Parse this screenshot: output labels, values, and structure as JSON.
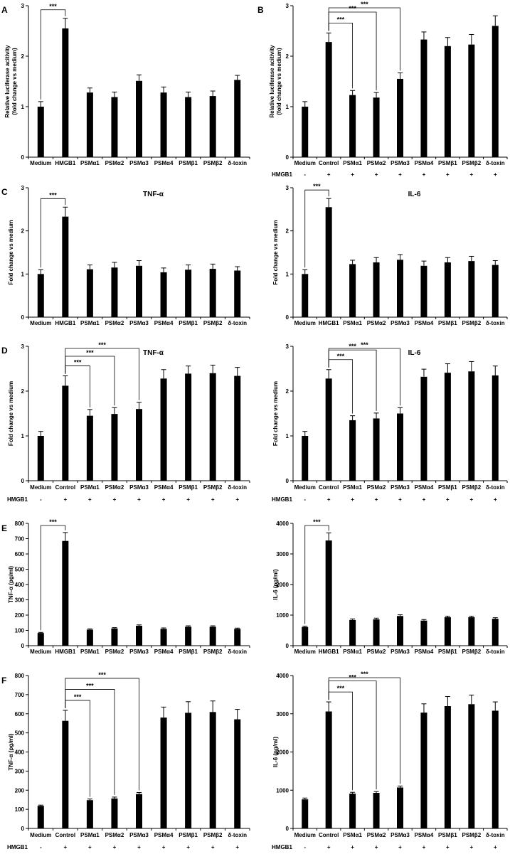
{
  "chart_data": [
    {
      "panel": "A",
      "type": "bar",
      "title": "",
      "ylabel": "Relative luciferase acitivity\n(fold change vs medium)",
      "ylim": [
        0,
        3
      ],
      "yticks": [
        "0",
        "1",
        "2",
        "3"
      ],
      "categories": [
        "Medium",
        "HMGB1",
        "PSMα1",
        "PSMα2",
        "PSMα3",
        "PSMα4",
        "PSMβ1",
        "PSMβ2",
        "δ-toxin"
      ],
      "values": [
        1.0,
        2.55,
        1.28,
        1.19,
        1.51,
        1.28,
        1.19,
        1.21,
        1.53
      ],
      "errors": [
        0.1,
        0.2,
        0.09,
        0.1,
        0.12,
        0.11,
        0.1,
        0.1,
        0.09
      ],
      "treatment_label": "",
      "treatment": [],
      "significance": [
        {
          "from": 0,
          "to": 1,
          "label": "***"
        }
      ]
    },
    {
      "panel": "B",
      "type": "bar",
      "title": "",
      "ylabel": "Relative luciferase acitivity\n(fold change vs medium)",
      "ylim": [
        0,
        3
      ],
      "yticks": [
        "0",
        "1",
        "2",
        "3"
      ],
      "categories": [
        "Medium",
        "Control",
        "PSMα1",
        "PSMα2",
        "PSMα3",
        "PSMα4",
        "PSMβ1",
        "PSMβ2",
        "δ-toxin"
      ],
      "values": [
        1.0,
        2.28,
        1.23,
        1.18,
        1.55,
        2.33,
        2.2,
        2.23,
        2.6
      ],
      "errors": [
        0.1,
        0.18,
        0.09,
        0.1,
        0.12,
        0.15,
        0.17,
        0.2,
        0.2
      ],
      "treatment_label": "HMGB1",
      "treatment": [
        "-",
        "+",
        "+",
        "+",
        "+",
        "+",
        "+",
        "+",
        "+"
      ],
      "significance": [
        {
          "from": 1,
          "to": 2,
          "label": "***"
        },
        {
          "from": 1,
          "to": 3,
          "label": "***"
        },
        {
          "from": 1,
          "to": 4,
          "label": "***"
        }
      ]
    },
    {
      "panel": "C",
      "type": "bar",
      "title": "TNF-α",
      "ylabel": "Fold change vs medium",
      "ylim": [
        0,
        3
      ],
      "yticks": [
        "0",
        "1",
        "2",
        "3"
      ],
      "categories": [
        "Medium",
        "HMGB1",
        "PSMα1",
        "PSMα2",
        "PSMα3",
        "PSMα4",
        "PSMβ1",
        "PSMβ2",
        "δ-toxin"
      ],
      "values": [
        1.0,
        2.33,
        1.11,
        1.15,
        1.19,
        1.04,
        1.1,
        1.12,
        1.08
      ],
      "errors": [
        0.1,
        0.22,
        0.1,
        0.12,
        0.12,
        0.1,
        0.11,
        0.11,
        0.09
      ],
      "treatment_label": "",
      "treatment": [],
      "significance": [
        {
          "from": 0,
          "to": 1,
          "label": "***"
        }
      ]
    },
    {
      "panel": "",
      "type": "bar",
      "title": "IL-6",
      "ylabel": "Fold change vs medium",
      "ylim": [
        0,
        3
      ],
      "yticks": [
        "0",
        "1",
        "2",
        "3"
      ],
      "categories": [
        "Medium",
        "HMGB1",
        "PSMα1",
        "PSMα2",
        "PSMα3",
        "PSMα4",
        "PSMβ1",
        "PSMβ2",
        "δ-toxin"
      ],
      "values": [
        1.0,
        2.55,
        1.23,
        1.27,
        1.33,
        1.19,
        1.27,
        1.3,
        1.21
      ],
      "errors": [
        0.1,
        0.2,
        0.09,
        0.11,
        0.12,
        0.11,
        0.11,
        0.11,
        0.1
      ],
      "treatment_label": "",
      "treatment": [],
      "significance": [
        {
          "from": 0,
          "to": 1,
          "label": "***"
        }
      ]
    },
    {
      "panel": "D",
      "type": "bar",
      "title": "TNF-α",
      "ylabel": "Fold change vs medium",
      "ylim": [
        0,
        3
      ],
      "yticks": [
        "0",
        "1",
        "2",
        "3"
      ],
      "categories": [
        "Medium",
        "Control",
        "PSMα1",
        "PSMα2",
        "PSMα3",
        "PSMα4",
        "PSMβ1",
        "PSMβ2",
        "δ-toxin"
      ],
      "values": [
        1.0,
        2.12,
        1.45,
        1.49,
        1.6,
        2.28,
        2.39,
        2.4,
        2.34
      ],
      "errors": [
        0.1,
        0.22,
        0.14,
        0.14,
        0.15,
        0.2,
        0.17,
        0.18,
        0.19
      ],
      "treatment_label": "HMGB1",
      "treatment": [
        "-",
        "+",
        "+",
        "+",
        "+",
        "+",
        "+",
        "+",
        "+"
      ],
      "significance": [
        {
          "from": 1,
          "to": 2,
          "label": "***"
        },
        {
          "from": 1,
          "to": 3,
          "label": "***"
        },
        {
          "from": 1,
          "to": 4,
          "label": "***"
        }
      ]
    },
    {
      "panel": "",
      "type": "bar",
      "title": "IL-6",
      "ylabel": "Fold change vs medium",
      "ylim": [
        0,
        3
      ],
      "yticks": [
        "0",
        "1",
        "2",
        "3"
      ],
      "categories": [
        "Medium",
        "Control",
        "PSMα1",
        "PSMα2",
        "PSMα3",
        "PSMα4",
        "PSMβ1",
        "PSMβ2",
        "δ-toxin"
      ],
      "values": [
        1.0,
        2.28,
        1.35,
        1.39,
        1.5,
        2.32,
        2.41,
        2.44,
        2.35
      ],
      "errors": [
        0.1,
        0.2,
        0.1,
        0.12,
        0.13,
        0.17,
        0.2,
        0.22,
        0.21
      ],
      "treatment_label": "HMGB1",
      "treatment": [
        "-",
        "+",
        "+",
        "+",
        "+",
        "+",
        "+",
        "+",
        "+"
      ],
      "significance": [
        {
          "from": 1,
          "to": 2,
          "label": "***"
        },
        {
          "from": 1,
          "to": 3,
          "label": "***"
        },
        {
          "from": 1,
          "to": 4,
          "label": "***"
        }
      ]
    },
    {
      "panel": "E",
      "type": "bar",
      "title": "",
      "ylabel": "TNF-α (pg/ml)",
      "ylim": [
        0,
        800
      ],
      "yticks": [
        "0",
        "100",
        "200",
        "300",
        "400",
        "500",
        "600",
        "700",
        "800"
      ],
      "categories": [
        "Medium",
        "HMGB1",
        "PSMα1",
        "PSMα2",
        "PSMα3",
        "PSMα4",
        "PSMβ1",
        "PSMβ2",
        "δ-toxin"
      ],
      "values": [
        83,
        685,
        105,
        113,
        130,
        110,
        124,
        124,
        110
      ],
      "errors": [
        4,
        55,
        5,
        5,
        6,
        6,
        6,
        6,
        5
      ],
      "treatment_label": "",
      "treatment": [],
      "significance": [
        {
          "from": 0,
          "to": 1,
          "label": "***"
        }
      ]
    },
    {
      "panel": "",
      "type": "bar",
      "title": "",
      "ylabel": "IL-6 (pg/ml)",
      "ylim": [
        0,
        4000
      ],
      "yticks": [
        "0",
        "1000",
        "2000",
        "3000",
        "4000"
      ],
      "categories": [
        "Medium",
        "HMGB1",
        "PSMα1",
        "PSMα2",
        "PSMα3",
        "PSMα4",
        "PSMβ1",
        "PSMβ2",
        "δ-toxin"
      ],
      "values": [
        610,
        3440,
        840,
        860,
        970,
        820,
        930,
        930,
        880
      ],
      "errors": [
        30,
        250,
        35,
        40,
        40,
        35,
        35,
        35,
        35
      ],
      "treatment_label": "",
      "treatment": [],
      "significance": [
        {
          "from": 0,
          "to": 1,
          "label": "***"
        }
      ]
    },
    {
      "panel": "F",
      "type": "bar",
      "title": "",
      "ylabel": "TNF-α (pg/ml)",
      "ylim": [
        0,
        800
      ],
      "yticks": [
        "0",
        "100",
        "200",
        "300",
        "400",
        "500",
        "600",
        "700",
        "800"
      ],
      "categories": [
        "Medium",
        "Control",
        "PSMα1",
        "PSMα2",
        "PSMα3",
        "PSMα4",
        "PSMβ1",
        "PSMβ2",
        "δ-toxin"
      ],
      "values": [
        118,
        563,
        148,
        157,
        180,
        580,
        605,
        609,
        571
      ],
      "errors": [
        4,
        55,
        6,
        7,
        8,
        55,
        58,
        58,
        52
      ],
      "treatment_label": "HMGB1",
      "treatment": [
        "-",
        "+",
        "+",
        "+",
        "+",
        "+",
        "+",
        "+",
        "+"
      ],
      "significance": [
        {
          "from": 1,
          "to": 2,
          "label": "***"
        },
        {
          "from": 1,
          "to": 3,
          "label": "***"
        },
        {
          "from": 1,
          "to": 4,
          "label": "***"
        }
      ]
    },
    {
      "panel": "",
      "type": "bar",
      "title": "",
      "ylabel": "IL-6 (pg/ml)",
      "ylim": [
        0,
        4000
      ],
      "yticks": [
        "0",
        "1000",
        "2000",
        "3000",
        "4000"
      ],
      "categories": [
        "Medium",
        "Control",
        "PSMα1",
        "PSMα2",
        "PSMα3",
        "PSMα4",
        "PSMβ1",
        "PSMβ2",
        "δ-toxin"
      ],
      "values": [
        760,
        3060,
        910,
        930,
        1070,
        3030,
        3200,
        3250,
        3080
      ],
      "errors": [
        35,
        250,
        35,
        35,
        40,
        230,
        250,
        240,
        230
      ],
      "treatment_label": "HMGB1",
      "treatment": [
        "-",
        "+",
        "+",
        "+",
        "+",
        "+",
        "+",
        "+",
        "+"
      ],
      "significance": [
        {
          "from": 1,
          "to": 2,
          "label": "***"
        },
        {
          "from": 1,
          "to": 3,
          "label": "***"
        },
        {
          "from": 1,
          "to": 4,
          "label": "***"
        }
      ]
    }
  ]
}
